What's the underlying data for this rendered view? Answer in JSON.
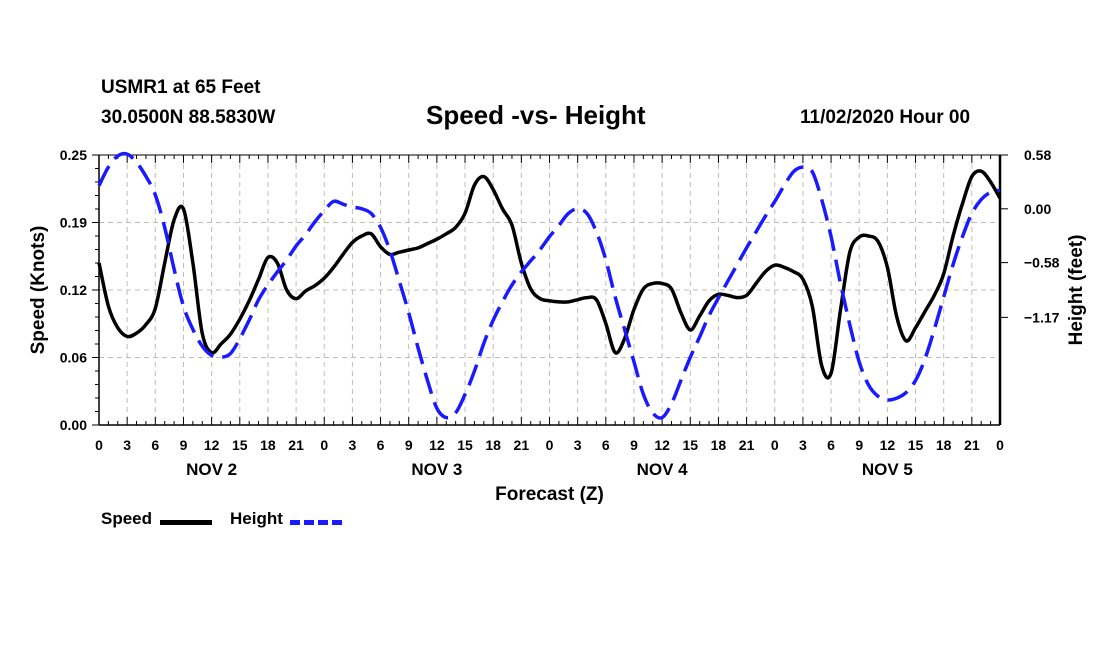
{
  "header": {
    "station": "USMR1 at 65 Feet",
    "coords": "30.0500N 88.5830W",
    "title": "Speed -vs- Height",
    "datetime": "11/02/2020 Hour 00"
  },
  "legend": {
    "speed_label": "Speed",
    "height_label": "Height"
  },
  "colors": {
    "speed": "#000000",
    "height": "#1a1aff",
    "grid": "#bdbdbd"
  },
  "chart_data": {
    "type": "line",
    "title": "Speed -vs- Height",
    "xlabel": "Forecast (Z)",
    "ylabel": "Speed (Knots)",
    "y2label": "Height (feet)",
    "xlim": [
      0,
      96
    ],
    "ylim": [
      0,
      0.25
    ],
    "y2lim": [
      -2.33,
      0.58
    ],
    "x_ticks": [
      0,
      3,
      6,
      9,
      12,
      15,
      18,
      21,
      24,
      27,
      30,
      33,
      36,
      39,
      42,
      45,
      48,
      51,
      54,
      57,
      60,
      63,
      66,
      69,
      72,
      75,
      78,
      81,
      84,
      87,
      90,
      93,
      96
    ],
    "x_tick_labels": [
      "0",
      "3",
      "6",
      "9",
      "12",
      "15",
      "18",
      "21",
      "0",
      "3",
      "6",
      "9",
      "12",
      "15",
      "18",
      "21",
      "0",
      "3",
      "6",
      "9",
      "12",
      "15",
      "18",
      "21",
      "0",
      "3",
      "6",
      "9",
      "12",
      "15",
      "18",
      "21",
      "0"
    ],
    "day_labels": [
      {
        "x": 12,
        "label": "NOV 2"
      },
      {
        "x": 36,
        "label": "NOV 3"
      },
      {
        "x": 60,
        "label": "NOV 4"
      },
      {
        "x": 84,
        "label": "NOV 5"
      }
    ],
    "y_ticks": [
      0.0,
      0.0625,
      0.125,
      0.1875,
      0.25
    ],
    "y_tick_labels": [
      "0.00",
      "0.06",
      "0.12",
      "0.19",
      "0.25"
    ],
    "y2_ticks": [
      0.58,
      0.0,
      -0.58,
      -1.17
    ],
    "y2_tick_labels": [
      "0.58",
      "0.00",
      "−0.58",
      "−1.17"
    ],
    "grid": true,
    "legend_position": "bottom-left",
    "series": [
      {
        "name": "Speed",
        "axis": "left",
        "style": "solid",
        "x": [
          0,
          1,
          2,
          3,
          4,
          5,
          6,
          7,
          8,
          9,
          10,
          11,
          12,
          13,
          14,
          15,
          16,
          17,
          18,
          19,
          20,
          21,
          22,
          23,
          24,
          25,
          26,
          27,
          28,
          29,
          30,
          31,
          32,
          33,
          34,
          35,
          36,
          37,
          38,
          39,
          40,
          41,
          42,
          43,
          44,
          45,
          46,
          47,
          48,
          49,
          50,
          51,
          52,
          53,
          54,
          55,
          56,
          57,
          58,
          59,
          60,
          61,
          62,
          63,
          64,
          65,
          66,
          67,
          68,
          69,
          70,
          71,
          72,
          73,
          74,
          75,
          76,
          77,
          78,
          79,
          80,
          81,
          82,
          83,
          84,
          85,
          86,
          87,
          88,
          89,
          90,
          91,
          92,
          93,
          94,
          95,
          96
        ],
        "values": [
          0.15,
          0.11,
          0.09,
          0.082,
          0.085,
          0.093,
          0.108,
          0.15,
          0.19,
          0.2,
          0.15,
          0.085,
          0.067,
          0.075,
          0.084,
          0.098,
          0.115,
          0.135,
          0.155,
          0.15,
          0.125,
          0.117,
          0.124,
          0.129,
          0.136,
          0.146,
          0.158,
          0.169,
          0.175,
          0.177,
          0.165,
          0.158,
          0.16,
          0.162,
          0.164,
          0.168,
          0.172,
          0.177,
          0.183,
          0.196,
          0.222,
          0.23,
          0.218,
          0.2,
          0.185,
          0.15,
          0.126,
          0.117,
          0.115,
          0.114,
          0.114,
          0.116,
          0.118,
          0.116,
          0.094,
          0.067,
          0.08,
          0.107,
          0.126,
          0.131,
          0.131,
          0.126,
          0.104,
          0.088,
          0.101,
          0.115,
          0.121,
          0.12,
          0.118,
          0.12,
          0.131,
          0.142,
          0.148,
          0.146,
          0.142,
          0.135,
          0.11,
          0.055,
          0.048,
          0.106,
          0.16,
          0.174,
          0.175,
          0.17,
          0.146,
          0.1,
          0.078,
          0.09,
          0.105,
          0.12,
          0.14,
          0.175,
          0.205,
          0.23,
          0.235,
          0.225,
          0.21
        ]
      },
      {
        "name": "Height",
        "axis": "right",
        "style": "dashed",
        "x": [
          0,
          1,
          2,
          3,
          4,
          5,
          6,
          7,
          8,
          9,
          10,
          11,
          12,
          13,
          14,
          15,
          16,
          17,
          18,
          19,
          20,
          21,
          22,
          23,
          24,
          25,
          26,
          27,
          28,
          29,
          30,
          31,
          32,
          33,
          34,
          35,
          36,
          37,
          38,
          39,
          40,
          41,
          42,
          43,
          44,
          45,
          46,
          47,
          48,
          49,
          50,
          51,
          52,
          53,
          54,
          55,
          56,
          57,
          58,
          59,
          60,
          61,
          62,
          63,
          64,
          65,
          66,
          67,
          68,
          69,
          70,
          71,
          72,
          73,
          74,
          75,
          76,
          77,
          78,
          79,
          80,
          81,
          82,
          83,
          84,
          85,
          86,
          87,
          88,
          89,
          90,
          91,
          92,
          93,
          94,
          95,
          96
        ],
        "values": [
          0.25,
          0.45,
          0.57,
          0.59,
          0.5,
          0.35,
          0.15,
          -0.2,
          -0.65,
          -1.05,
          -1.3,
          -1.48,
          -1.58,
          -1.6,
          -1.56,
          -1.4,
          -1.2,
          -0.98,
          -0.82,
          -0.68,
          -0.55,
          -0.4,
          -0.28,
          -0.14,
          -0.02,
          0.08,
          0.05,
          0.02,
          0.0,
          -0.05,
          -0.2,
          -0.45,
          -0.78,
          -1.12,
          -1.5,
          -1.85,
          -2.15,
          -2.25,
          -2.2,
          -2.0,
          -1.75,
          -1.45,
          -1.2,
          -1.0,
          -0.82,
          -0.68,
          -0.56,
          -0.44,
          -0.3,
          -0.18,
          -0.05,
          0.0,
          -0.05,
          -0.25,
          -0.55,
          -0.95,
          -1.3,
          -1.65,
          -2.0,
          -2.2,
          -2.25,
          -2.1,
          -1.85,
          -1.6,
          -1.38,
          -1.15,
          -0.96,
          -0.78,
          -0.6,
          -0.42,
          -0.25,
          -0.08,
          0.08,
          0.25,
          0.4,
          0.45,
          0.4,
          0.1,
          -0.3,
          -0.8,
          -1.25,
          -1.65,
          -1.9,
          -2.02,
          -2.06,
          -2.04,
          -1.98,
          -1.85,
          -1.62,
          -1.3,
          -0.95,
          -0.6,
          -0.3,
          -0.05,
          0.1,
          0.18,
          0.2
        ]
      }
    ]
  }
}
